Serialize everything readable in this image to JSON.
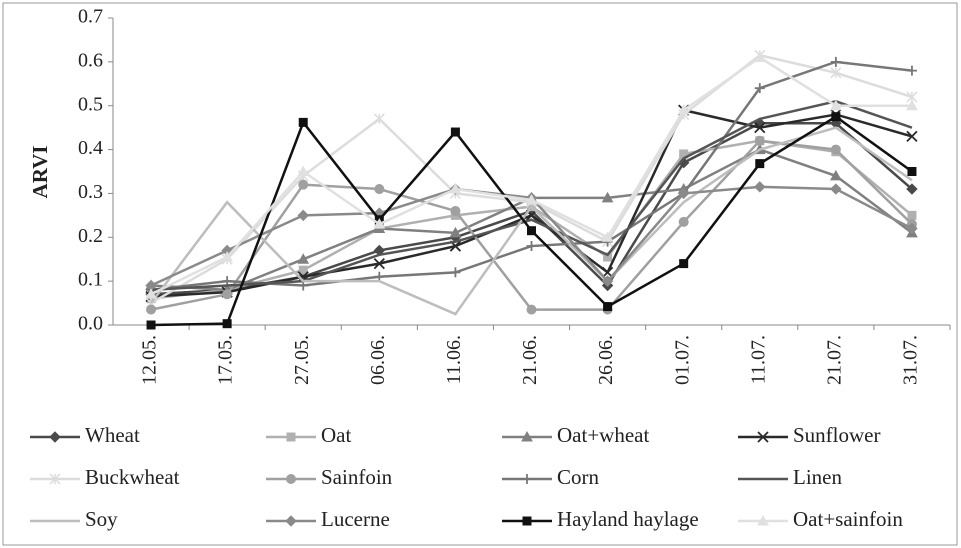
{
  "chart_data": {
    "type": "line",
    "y_label": "ARVI",
    "categories": [
      "12.05.",
      "17.05.",
      "27.05.",
      "06.06.",
      "11.06.",
      "21.06.",
      "26.06.",
      "01.07.",
      "11.07.",
      "21.07.",
      "31.07."
    ],
    "ylim": [
      0,
      0.7
    ],
    "yticks": [
      {
        "value": 0,
        "label": "0.0"
      },
      0.1,
      0.2,
      0.3,
      0.4,
      0.5,
      0.6,
      0.7
    ],
    "series": [
      {
        "name": "Wheat",
        "color": "#4a4a4a",
        "marker": "diamond",
        "values": [
          0.07,
          0.08,
          0.11,
          0.17,
          0.2,
          0.26,
          0.09,
          0.37,
          0.46,
          0.46,
          0.31
        ]
      },
      {
        "name": "Oat",
        "color": "#b0b0b0",
        "marker": "square",
        "values": [
          0.06,
          0.08,
          0.125,
          0.22,
          0.25,
          0.27,
          0.155,
          0.39,
          0.42,
          0.395,
          0.25
        ]
      },
      {
        "name": "Oat+wheat",
        "color": "#808080",
        "marker": "triangle",
        "values": [
          0.09,
          0.08,
          0.15,
          0.22,
          0.21,
          0.29,
          0.29,
          0.31,
          0.4,
          0.34,
          0.21
        ]
      },
      {
        "name": "Sunflower",
        "color": "#2a2a2a",
        "marker": "x",
        "values": [
          0.065,
          0.075,
          0.11,
          0.14,
          0.18,
          0.25,
          0.12,
          0.49,
          0.45,
          0.48,
          0.43
        ]
      },
      {
        "name": "Buckwheat",
        "color": "#dcdcdc",
        "marker": "star",
        "values": [
          0.05,
          0.15,
          0.34,
          0.47,
          0.3,
          0.28,
          0.19,
          0.48,
          0.615,
          0.575,
          0.52
        ]
      },
      {
        "name": "Sainfoin",
        "color": "#a0a0a0",
        "marker": "circle",
        "values": [
          0.035,
          0.07,
          0.32,
          0.31,
          0.26,
          0.035,
          0.035,
          0.235,
          0.42,
          0.4,
          0.23
        ]
      },
      {
        "name": "Corn",
        "color": "#777777",
        "marker": "plus",
        "values": [
          0.08,
          0.1,
          0.09,
          0.11,
          0.12,
          0.18,
          0.19,
          0.3,
          0.54,
          0.6,
          0.58
        ]
      },
      {
        "name": "Linen",
        "color": "#555555",
        "marker": "none",
        "values": [
          0.08,
          0.09,
          0.1,
          0.16,
          0.19,
          0.24,
          0.16,
          0.38,
          0.47,
          0.51,
          0.45
        ]
      },
      {
        "name": "Soy",
        "color": "#bdbdbd",
        "marker": "none",
        "values": [
          0.05,
          0.28,
          0.1,
          0.1,
          0.025,
          0.27,
          0.1,
          0.28,
          0.4,
          0.45,
          0.33
        ]
      },
      {
        "name": "Lucerne",
        "color": "#8a8a8a",
        "marker": "diamond",
        "values": [
          0.09,
          0.17,
          0.25,
          0.255,
          0.31,
          0.29,
          0.1,
          0.3,
          0.315,
          0.31,
          0.22
        ]
      },
      {
        "name": "Hayland haylage",
        "color": "#111111",
        "marker": "square",
        "values": [
          0.0,
          0.003,
          0.462,
          0.24,
          0.44,
          0.215,
          0.042,
          0.14,
          0.368,
          0.475,
          0.35
        ]
      },
      {
        "name": "Oat+sainfoin",
        "color": "#e0e0e0",
        "marker": "triangle",
        "values": [
          0.07,
          0.155,
          0.35,
          0.23,
          0.31,
          0.285,
          0.2,
          0.49,
          0.61,
          0.5,
          0.5
        ]
      }
    ]
  }
}
